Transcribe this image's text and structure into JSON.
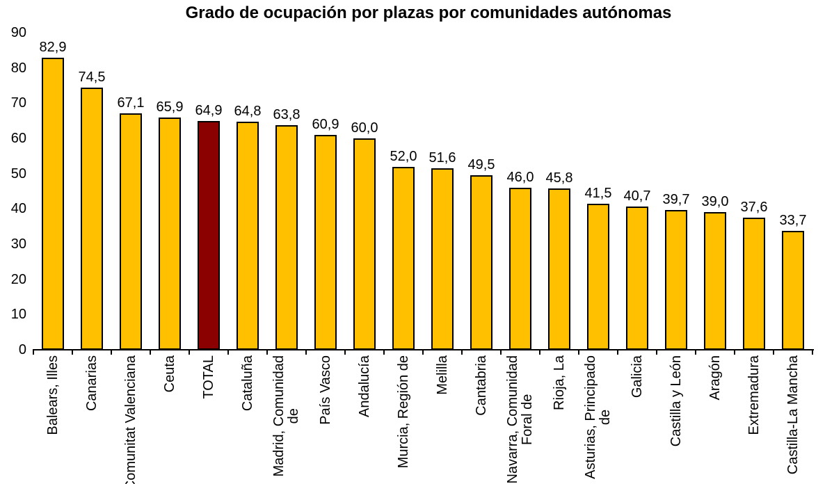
{
  "chart_data": {
    "type": "bar",
    "title": "Grado de ocupación por plazas por comunidades autónomas",
    "categories": [
      "Balears, Illes",
      "Canarias",
      "Comunitat Valenciana",
      "Ceuta",
      "TOTAL",
      "Cataluña",
      "Madrid, Comunidad de",
      "País Vasco",
      "Andalucía",
      "Murcia, Región de",
      "Melilla",
      "Cantabria",
      "Navarra, Comunidad Foral de",
      "Rioja, La",
      "Asturias, Principado de",
      "Galicia",
      "Castilla y León",
      "Aragón",
      "Extremadura",
      "Castilla-La Mancha"
    ],
    "category_display_lines": [
      [
        "Balears, Illes"
      ],
      [
        "Canarias"
      ],
      [
        "Comunitat Valenciana"
      ],
      [
        "Ceuta"
      ],
      [
        "TOTAL"
      ],
      [
        "Cataluña"
      ],
      [
        "Madrid, Comunidad",
        "de"
      ],
      [
        "País Vasco"
      ],
      [
        "Andalucía"
      ],
      [
        "Murcia, Región de"
      ],
      [
        "Melilla"
      ],
      [
        "Cantabria"
      ],
      [
        "Navarra, Comunidad",
        "Foral de"
      ],
      [
        "Rioja, La"
      ],
      [
        "Asturias, Principado",
        "de"
      ],
      [
        "Galicia"
      ],
      [
        "Castilla y León"
      ],
      [
        "Aragón"
      ],
      [
        "Extremadura"
      ],
      [
        "Castilla-La Mancha"
      ]
    ],
    "values": [
      82.9,
      74.5,
      67.1,
      65.9,
      64.9,
      64.8,
      63.8,
      60.9,
      60.0,
      52.0,
      51.6,
      49.5,
      46.0,
      45.8,
      41.5,
      40.7,
      39.7,
      39.0,
      37.6,
      33.7
    ],
    "value_labels": [
      "82,9",
      "74,5",
      "67,1",
      "65,9",
      "64,9",
      "64,8",
      "63,8",
      "60,9",
      "60,0",
      "52,0",
      "51,6",
      "49,5",
      "46,0",
      "45,8",
      "41,5",
      "40,7",
      "39,7",
      "39,0",
      "37,6",
      "33,7"
    ],
    "highlighted_category": "TOTAL",
    "highlighted_index": 4,
    "xlabel": "",
    "ylabel": "",
    "ylim": [
      0,
      90
    ],
    "yticks": [
      0,
      10,
      20,
      30,
      40,
      50,
      60,
      70,
      80,
      90
    ],
    "grid": false,
    "legend_position": "none",
    "colors": {
      "bar_fill": "#FFC000",
      "bar_border": "#000000",
      "highlight_fill": "#8B0000",
      "axis": "#000000",
      "text": "#000000",
      "background": "#FFFFFF"
    }
  }
}
